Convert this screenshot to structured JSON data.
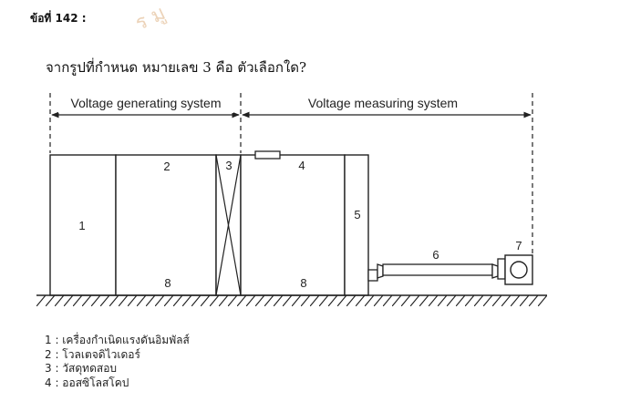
{
  "question": {
    "number": "ข้อที่ 142 :",
    "watermark": "ร มู",
    "prompt": "จากรูปที่กำหนด หมายเลข 3 คือ ตัวเลือกใด?"
  },
  "diagram": {
    "left_system_label": "Voltage generating system",
    "right_system_label": "Voltage measuring system",
    "component_numbers": [
      "1",
      "2",
      "3",
      "4",
      "5",
      "6",
      "7",
      "8",
      "8"
    ]
  },
  "choices": [
    "1 : เครื่องกำเนิดแรงดันอิมพัลส์",
    "2 : โวลเตจดิไวเดอร์",
    "3 : วัสดุทดสอบ",
    "4 : ออสซิโลสโคป"
  ]
}
